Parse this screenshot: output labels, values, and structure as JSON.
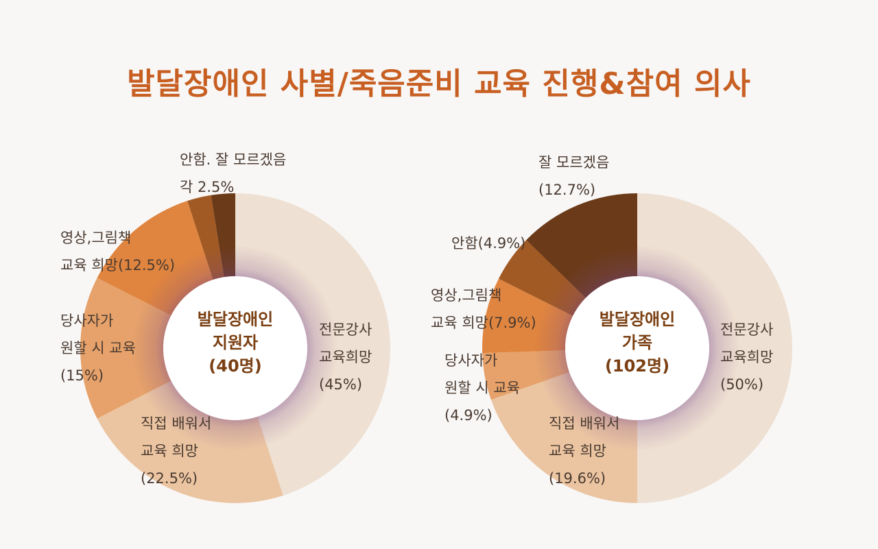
{
  "colors": {
    "title": "#c85f22",
    "center_text": "#7a3f12",
    "label_text": "#4a3a30"
  },
  "chart_data": [
    {
      "type": "pie",
      "title": "발달장애인 사별/죽음준비 교육 진행&참여 의사",
      "center_label": [
        "발달장애인",
        "지원자",
        "(40명)"
      ],
      "slices": [
        {
          "label": [
            "전문강사",
            "교육희망",
            "(45%)"
          ],
          "value": 45,
          "color": "#eee0d2"
        },
        {
          "label": [
            "직접 배워서",
            "교육 희망",
            "(22.5%)"
          ],
          "value": 22.5,
          "color": "#ebc5a2"
        },
        {
          "label": [
            "당사자가",
            "원할 시 교육",
            "(15%)"
          ],
          "value": 15,
          "color": "#e6a26a"
        },
        {
          "label": [
            "영상,그림책",
            "교육 희망(12.5%)"
          ],
          "value": 12.5,
          "color": "#e0853f"
        },
        {
          "label": [
            "안함. 잘 모르겠음",
            "각 2.5%"
          ],
          "value": 2.5,
          "color": "#a25a24"
        },
        {
          "label": [],
          "value": 2.5,
          "color": "#6b3a18"
        }
      ]
    },
    {
      "type": "pie",
      "center_label": [
        "발달장애인",
        "가족",
        "(102명)"
      ],
      "slices": [
        {
          "label": [
            "전문강사",
            "교육희망",
            "(50%)"
          ],
          "value": 50,
          "color": "#eee0d2"
        },
        {
          "label": [
            "직접 배워서",
            "교육 희망",
            "(19.6%)"
          ],
          "value": 19.6,
          "color": "#ebc5a2"
        },
        {
          "label": [
            "당사자가",
            "원할 시 교육",
            "(4.9%)"
          ],
          "value": 4.9,
          "color": "#e6a26a"
        },
        {
          "label": [
            "영상,그림책",
            "교육 희망(7.9%)"
          ],
          "value": 7.9,
          "color": "#e0853f"
        },
        {
          "label": [
            "안함(4.9%)"
          ],
          "value": 4.9,
          "color": "#a25a24"
        },
        {
          "label": [
            "잘 모르겠음",
            "(12.7%)"
          ],
          "value": 12.7,
          "color": "#6b3a18"
        }
      ]
    }
  ]
}
